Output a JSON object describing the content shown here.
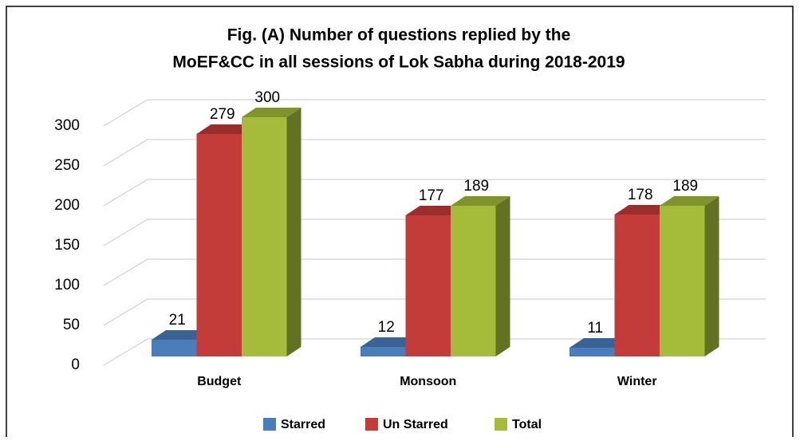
{
  "chart_data": {
    "type": "bar3d",
    "title": "Fig. (A) Number of questions replied by the",
    "subtitle": "MoEF&CC in all sessions of Lok Sabha during 2018-2019",
    "categories": [
      "Budget",
      "Monsoon",
      "Winter"
    ],
    "series": [
      {
        "name": "Starred",
        "color": "#4a7ebb",
        "values": [
          21,
          12,
          11
        ]
      },
      {
        "name": "Un Starred",
        "color": "#c43c39",
        "values": [
          279,
          177,
          178
        ]
      },
      {
        "name": "Total",
        "color": "#a5bc3a",
        "values": [
          300,
          189,
          189
        ]
      }
    ],
    "ylim": [
      0,
      300
    ],
    "yticks": [
      0,
      50,
      100,
      150,
      200,
      250,
      300
    ],
    "grid": true,
    "legend": "bottom"
  }
}
